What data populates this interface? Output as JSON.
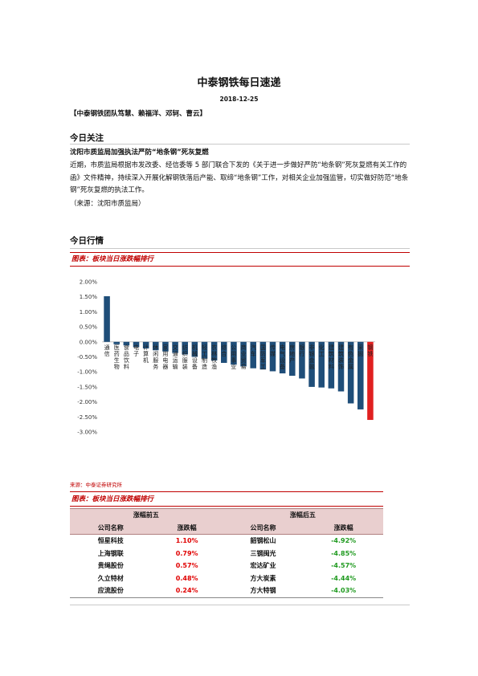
{
  "header": {
    "title": "中泰钢铁每日速递",
    "date": "2018-12-25",
    "team": "【中泰钢铁团队笃慧、赖福洋、邓轲、曹云】"
  },
  "focus": {
    "section_title": "今日关注",
    "headline": "沈阳市质监局加强执法严防“地条钢”死灰复燃",
    "body": "近期，市质监局根据市发改委、经信委等 5 部门联合下发的《关于进一步做好严防“地条钢”死灰复燃有关工作的函》文件精神，持续深入开展化解钢铁落后产能、取缔“地条钢”工作，对相关企业加强监管，切实做好防范“地条钢”死灰复燃的执法工作。",
    "source": "（来源：沈阳市质监局）"
  },
  "market": {
    "section_title": "今日行情",
    "figure1_caption": "图表：板块当日涨跌幅排行",
    "figure1_source": "来源：中泰证券研究所",
    "figure2_caption": "图表：板块当日涨跌幅排行"
  },
  "colors": {
    "accent_red": "#c00000",
    "bar_blue": "#1f4e79",
    "bar_highlight": "#e02020",
    "up_red": "#e00000",
    "down_green": "#1f9a1f"
  },
  "chart_data": {
    "type": "bar",
    "ylim": [
      -0.03,
      0.02
    ],
    "yticks": [
      "2.00%",
      "1.50%",
      "1.00%",
      "0.50%",
      "0.00%",
      "-0.50%",
      "-1.00%",
      "-1.50%",
      "-2.00%",
      "-2.50%",
      "-3.00%"
    ],
    "categories": [
      "通信",
      "医药生物",
      "食品饮料",
      "电子",
      "计算机",
      "休闲服务",
      "家用电器",
      "交通运输",
      "纺织服装",
      "机械设备",
      "轻工制造",
      "农林牧渔",
      "综合",
      "公用事业",
      "商业贸易",
      "汽车",
      "国防军工",
      "传媒",
      "电气设备",
      "房地产",
      "银行",
      "非银金融",
      "化工",
      "建筑材料",
      "建筑装饰",
      "有色金属",
      "采掘",
      "钢铁"
    ],
    "values": [
      1.52,
      -0.08,
      -0.12,
      -0.18,
      -0.22,
      -0.28,
      -0.32,
      -0.37,
      -0.42,
      -0.5,
      -0.56,
      -0.62,
      -0.7,
      -0.76,
      -0.82,
      -0.88,
      -0.92,
      -0.98,
      -1.05,
      -1.13,
      -1.22,
      -1.5,
      -1.52,
      -1.55,
      -1.65,
      -2.05,
      -2.25,
      -2.6
    ],
    "highlight_index": 27
  },
  "ranking_table": {
    "group_top": "涨幅前五",
    "group_bottom": "涨幅后五",
    "col_company": "公司名称",
    "col_change": "涨跌幅",
    "top5": [
      {
        "name": "恒星科技",
        "change": "1.10%"
      },
      {
        "name": "上海钢联",
        "change": "0.79%"
      },
      {
        "name": "贵绳股份",
        "change": "0.57%"
      },
      {
        "name": "久立特材",
        "change": "0.48%"
      },
      {
        "name": "应流股份",
        "change": "0.24%"
      }
    ],
    "bottom5": [
      {
        "name": "韶钢松山",
        "change": "-4.92%"
      },
      {
        "name": "三钢闽光",
        "change": "-4.85%"
      },
      {
        "name": "宏达矿业",
        "change": "-4.57%"
      },
      {
        "name": "方大炭素",
        "change": "-4.44%"
      },
      {
        "name": "方大特钢",
        "change": "-4.03%"
      }
    ]
  }
}
